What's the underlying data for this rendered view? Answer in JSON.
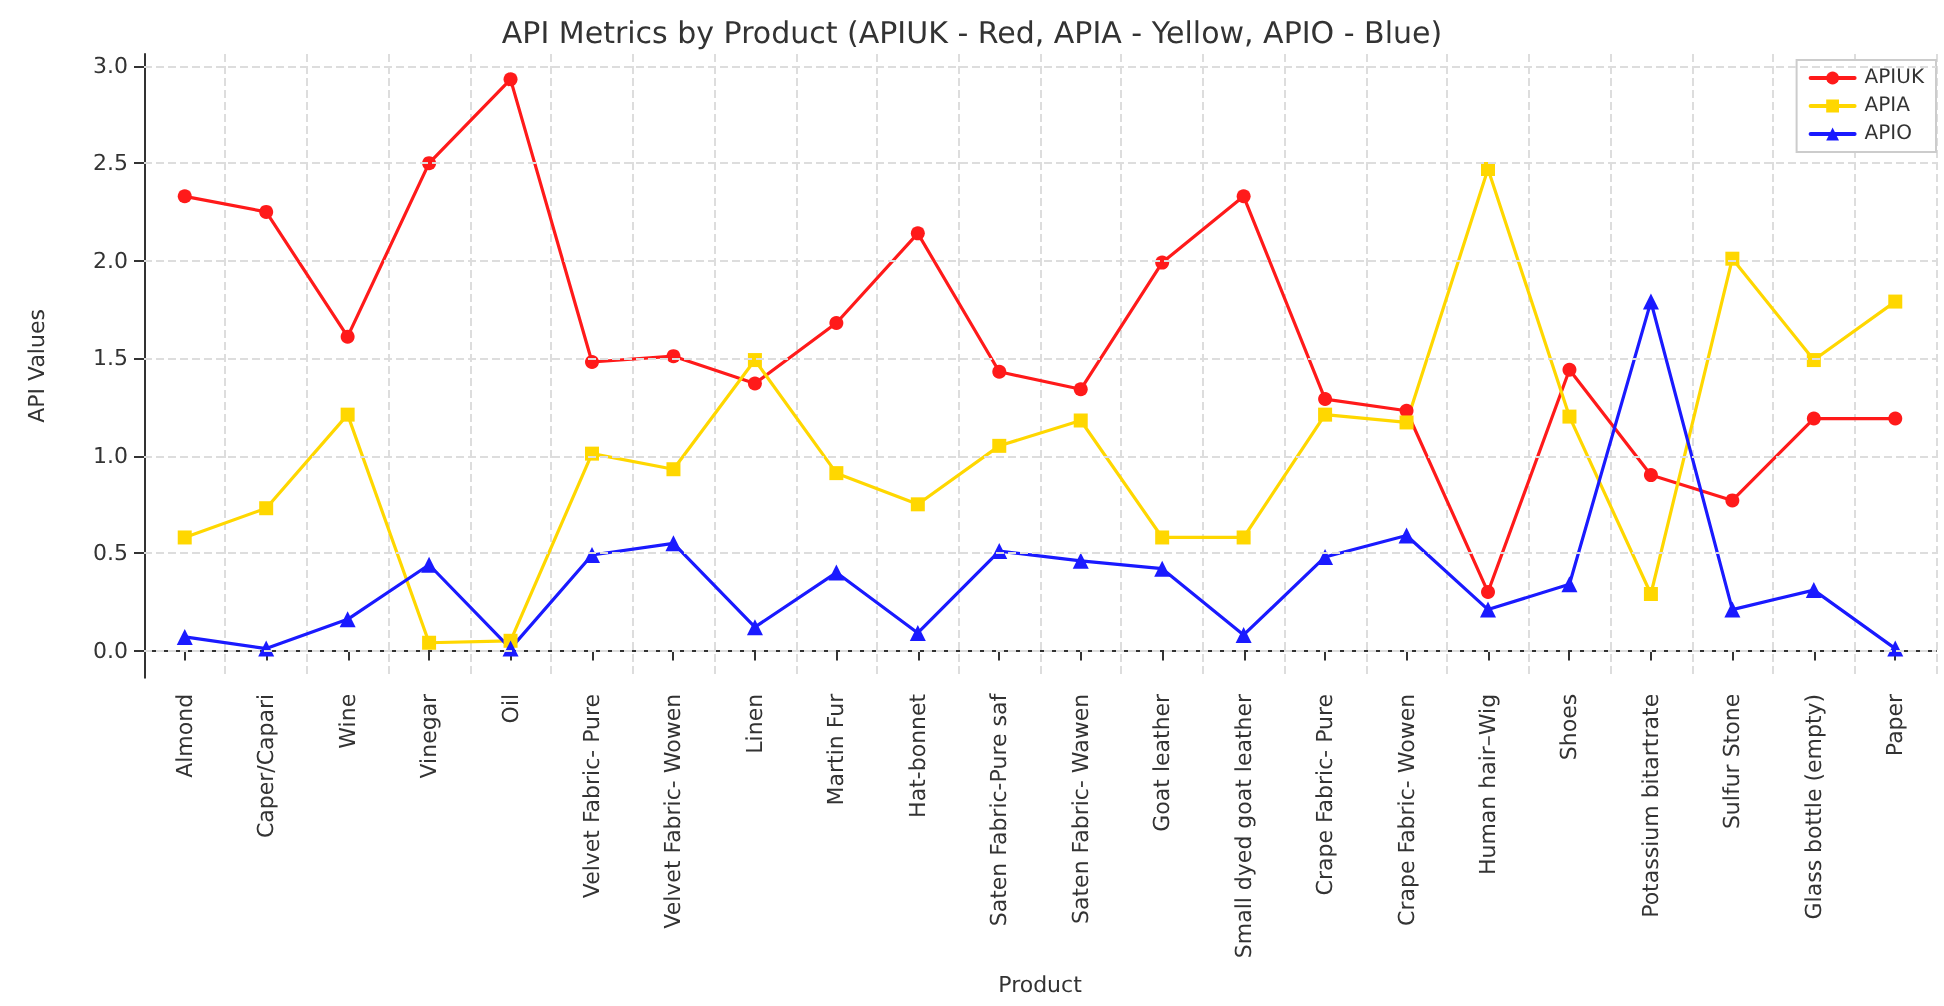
{
  "chart_data": {
    "type": "line",
    "title": "API Metrics by Product (APIUK - Red, APIA - Yellow, APIO - Blue)",
    "xlabel": "Product",
    "ylabel": "API Values",
    "categories": [
      "Almond",
      "Caper/Capari",
      "Wine",
      "Vinegar",
      "Oil",
      "Velvet Fabric- Pure",
      "Velvet Fabric- Wowen",
      "Linen",
      "Martin Fur",
      "Hat-bonnet",
      "Saten Fabric-Pure saf",
      "Saten Fabric- Wawen",
      "Goat leather",
      "Small dyed goat leather",
      "Crape Fabric- Pure",
      "Crape Fabric- Wowen",
      "Human hair–Wig",
      "Shoes",
      "Potassium bitartrate",
      "Sulfur Stone",
      "Glass bottle (empty)",
      "Paper"
    ],
    "series": [
      {
        "name": "APIUK",
        "color": "#ff1a1a",
        "marker": "circle",
        "values": [
          2.33,
          2.25,
          1.61,
          2.5,
          2.93,
          1.48,
          1.51,
          1.37,
          1.68,
          2.14,
          1.43,
          1.34,
          1.99,
          2.33,
          1.29,
          1.23,
          0.3,
          1.44,
          0.9,
          0.77,
          1.19,
          1.19
        ]
      },
      {
        "name": "APIA",
        "color": "#ffd700",
        "marker": "square",
        "values": [
          0.58,
          0.73,
          1.21,
          0.04,
          0.05,
          1.01,
          0.93,
          1.49,
          0.91,
          0.75,
          1.05,
          1.18,
          0.58,
          0.58,
          1.21,
          1.17,
          2.47,
          1.2,
          0.29,
          2.01,
          1.49,
          1.79
        ]
      },
      {
        "name": "APIO",
        "color": "#1a1aff",
        "marker": "triangle",
        "values": [
          0.07,
          0.01,
          0.16,
          0.44,
          0.01,
          0.49,
          0.55,
          0.12,
          0.4,
          0.09,
          0.51,
          0.46,
          0.42,
          0.08,
          0.48,
          0.59,
          0.21,
          0.34,
          1.79,
          0.21,
          0.31,
          0.01
        ]
      }
    ],
    "ylim": [
      -0.14,
      3.06
    ],
    "yticks": [
      {
        "value": 0,
        "label": "0.0"
      },
      {
        "value": 0.5,
        "label": "0.5"
      },
      {
        "value": 1,
        "label": "1.0"
      },
      {
        "value": 1.5,
        "label": "1.5"
      },
      {
        "value": 2,
        "label": "2.0"
      },
      {
        "value": 2.5,
        "label": "2.5"
      },
      {
        "value": 3,
        "label": "3.0"
      }
    ],
    "grid": true,
    "legend": "top right",
    "line_style": "solid"
  }
}
